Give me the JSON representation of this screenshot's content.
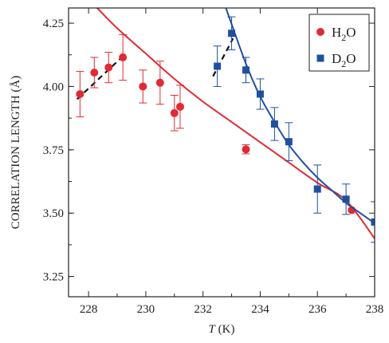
{
  "chart_data": {
    "type": "scatter",
    "xlabel_italic": "T",
    "xlabel_unit": " (K)",
    "ylabel": "CORRELATION LENGTH (Å)",
    "xlim": [
      227.3,
      238
    ],
    "ylim": [
      3.17,
      4.31
    ],
    "x_ticks": [
      228,
      230,
      232,
      234,
      236,
      238
    ],
    "y_ticks": [
      "3.25",
      "3.50",
      "3.75",
      "4.00",
      "4.25"
    ],
    "legend_position": "top-right",
    "series": [
      {
        "name": "H2O",
        "name_main": "H",
        "name_sub": "2",
        "name_tail": "O",
        "marker": "circle",
        "color": "#e02b35",
        "points": [
          {
            "x": 227.7,
            "y": 3.97,
            "err": 0.09
          },
          {
            "x": 228.2,
            "y": 4.055,
            "err": 0.06
          },
          {
            "x": 228.7,
            "y": 4.075,
            "err": 0.06
          },
          {
            "x": 229.2,
            "y": 4.115,
            "err": 0.09
          },
          {
            "x": 229.9,
            "y": 4.0,
            "err": 0.065
          },
          {
            "x": 230.5,
            "y": 4.015,
            "err": 0.085
          },
          {
            "x": 231.0,
            "y": 3.895,
            "err": 0.07
          },
          {
            "x": 231.2,
            "y": 3.92,
            "err": 0.085
          },
          {
            "x": 233.5,
            "y": 3.752,
            "err": 0.018
          },
          {
            "x": 237.2,
            "y": 3.512,
            "err": 0.0
          }
        ],
        "fit_curve": [
          {
            "x": 228.3,
            "y": 4.31
          },
          {
            "x": 229.0,
            "y": 4.23
          },
          {
            "x": 230.0,
            "y": 4.13
          },
          {
            "x": 231.0,
            "y": 4.03
          },
          {
            "x": 232.0,
            "y": 3.94
          },
          {
            "x": 233.0,
            "y": 3.86
          },
          {
            "x": 234.0,
            "y": 3.78
          },
          {
            "x": 235.0,
            "y": 3.7
          },
          {
            "x": 236.0,
            "y": 3.62
          },
          {
            "x": 237.0,
            "y": 3.55
          },
          {
            "x": 238.0,
            "y": 3.4
          }
        ],
        "dashed_line": [
          {
            "x": 227.6,
            "y": 3.95
          },
          {
            "x": 229.3,
            "y": 4.13
          }
        ]
      },
      {
        "name": "D2O",
        "name_main": "D",
        "name_sub": "2",
        "name_tail": "O",
        "marker": "square",
        "color": "#1f50a0",
        "points": [
          {
            "x": 232.5,
            "y": 4.08,
            "err": 0.08
          },
          {
            "x": 233.0,
            "y": 4.21,
            "err": 0.065
          },
          {
            "x": 233.5,
            "y": 4.065,
            "err": 0.05
          },
          {
            "x": 234.0,
            "y": 3.97,
            "err": 0.06
          },
          {
            "x": 234.5,
            "y": 3.852,
            "err": 0.065
          },
          {
            "x": 235.0,
            "y": 3.782,
            "err": 0.075
          },
          {
            "x": 236.0,
            "y": 3.595,
            "err": 0.095
          },
          {
            "x": 237.0,
            "y": 3.555,
            "err": 0.06
          },
          {
            "x": 238.0,
            "y": 3.465,
            "err": 0.08
          }
        ],
        "fit_curve": [
          {
            "x": 232.8,
            "y": 4.31
          },
          {
            "x": 233.5,
            "y": 4.09
          },
          {
            "x": 234.0,
            "y": 3.96
          },
          {
            "x": 234.5,
            "y": 3.86
          },
          {
            "x": 235.0,
            "y": 3.77
          },
          {
            "x": 235.5,
            "y": 3.7
          },
          {
            "x": 236.0,
            "y": 3.64
          },
          {
            "x": 236.5,
            "y": 3.59
          },
          {
            "x": 237.0,
            "y": 3.54
          },
          {
            "x": 237.5,
            "y": 3.5
          },
          {
            "x": 238.0,
            "y": 3.46
          }
        ],
        "dashed_line": [
          {
            "x": 232.35,
            "y": 4.04
          },
          {
            "x": 233.05,
            "y": 4.19
          }
        ]
      }
    ]
  }
}
